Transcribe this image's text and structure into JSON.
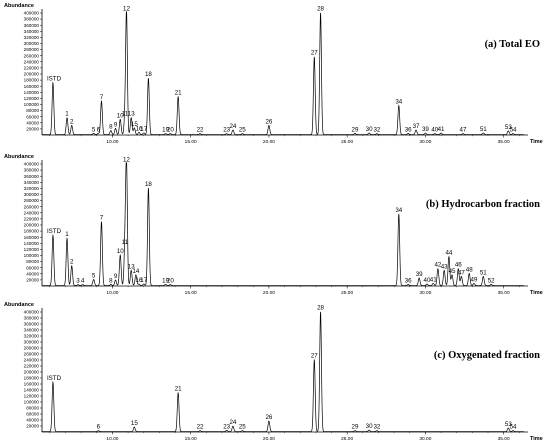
{
  "chart_data": [
    {
      "type": "line",
      "title": "(a) Total EO",
      "ylabel": "Abundance",
      "xlabel": "Time",
      "xlim": [
        5.5,
        36.3
      ],
      "ylim": [
        0,
        400000
      ],
      "y_ticks": [
        "20000",
        "40000",
        "60000",
        "80000",
        "100000",
        "120000",
        "140000",
        "160000",
        "180000",
        "200000",
        "220000",
        "240000",
        "260000",
        "280000",
        "300000",
        "320000",
        "340000",
        "360000",
        "380000",
        "400000"
      ],
      "x_ticks": [
        "10.00",
        "15.00",
        "20.00",
        "25.00",
        "30.00",
        "35.00"
      ],
      "peaks": [
        {
          "label": "ISTD",
          "x": 6.2,
          "y": 170000
        },
        {
          "label": "1",
          "x": 7.1,
          "y": 55000
        },
        {
          "label": "2",
          "x": 7.4,
          "y": 30000
        },
        {
          "label": "5",
          "x": 8.8,
          "y": 4000
        },
        {
          "label": "6",
          "x": 9.1,
          "y": 4000
        },
        {
          "label": "7",
          "x": 9.3,
          "y": 110000
        },
        {
          "label": "8",
          "x": 9.9,
          "y": 13000
        },
        {
          "label": "9",
          "x": 10.2,
          "y": 20000
        },
        {
          "label": "10",
          "x": 10.5,
          "y": 50000
        },
        {
          "label": "11",
          "x": 10.8,
          "y": 55000
        },
        {
          "label": "12",
          "x": 10.9,
          "y": 400000
        },
        {
          "label": "13",
          "x": 11.2,
          "y": 55000
        },
        {
          "label": "15",
          "x": 11.4,
          "y": 22000
        },
        {
          "label": "16",
          "x": 11.7,
          "y": 7000
        },
        {
          "label": "17",
          "x": 12.0,
          "y": 5000
        },
        {
          "label": "18",
          "x": 12.3,
          "y": 185000
        },
        {
          "label": "19",
          "x": 13.4,
          "y": 3000
        },
        {
          "label": "20",
          "x": 13.7,
          "y": 3000
        },
        {
          "label": "21",
          "x": 14.2,
          "y": 125000
        },
        {
          "label": "22",
          "x": 15.6,
          "y": 3000
        },
        {
          "label": "23",
          "x": 17.3,
          "y": 3000
        },
        {
          "label": "24",
          "x": 17.7,
          "y": 15000
        },
        {
          "label": "25",
          "x": 18.3,
          "y": 3000
        },
        {
          "label": "26",
          "x": 20.0,
          "y": 30000
        },
        {
          "label": "27",
          "x": 22.9,
          "y": 255000
        },
        {
          "label": "28",
          "x": 23.3,
          "y": 400000
        },
        {
          "label": "29",
          "x": 25.5,
          "y": 4000
        },
        {
          "label": "30",
          "x": 26.4,
          "y": 5000
        },
        {
          "label": "32",
          "x": 26.9,
          "y": 3000
        },
        {
          "label": "34",
          "x": 28.3,
          "y": 95000
        },
        {
          "label": "36",
          "x": 28.9,
          "y": 4000
        },
        {
          "label": "37",
          "x": 29.4,
          "y": 15000
        },
        {
          "label": "39",
          "x": 30.0,
          "y": 5000
        },
        {
          "label": "40",
          "x": 30.6,
          "y": 3000
        },
        {
          "label": "41",
          "x": 31.0,
          "y": 5000
        },
        {
          "label": "47",
          "x": 32.4,
          "y": 3000
        },
        {
          "label": "51",
          "x": 33.7,
          "y": 5000
        },
        {
          "label": "53",
          "x": 35.3,
          "y": 12000
        },
        {
          "label": "54",
          "x": 35.6,
          "y": 3000
        }
      ]
    },
    {
      "type": "line",
      "title": "(b) Hydrocarbon fraction",
      "ylabel": "Abundance",
      "xlabel": "Time",
      "xlim": [
        5.5,
        36.3
      ],
      "ylim": [
        0,
        400000
      ],
      "y_ticks": [
        "20000",
        "40000",
        "60000",
        "80000",
        "100000",
        "120000",
        "140000",
        "160000",
        "180000",
        "200000",
        "220000",
        "240000",
        "260000",
        "280000",
        "300000",
        "320000",
        "340000",
        "360000",
        "380000",
        "400000"
      ],
      "x_ticks": [
        "10.00",
        "15.00",
        "20.00",
        "25.00",
        "30.00",
        "35.00"
      ],
      "peaks": [
        {
          "label": "ISTD",
          "x": 6.2,
          "y": 165000
        },
        {
          "label": "1",
          "x": 7.1,
          "y": 155000
        },
        {
          "label": "2",
          "x": 7.4,
          "y": 65000
        },
        {
          "label": "3",
          "x": 7.8,
          "y": 3000
        },
        {
          "label": "4",
          "x": 8.1,
          "y": 3000
        },
        {
          "label": "5",
          "x": 8.8,
          "y": 20000
        },
        {
          "label": "7",
          "x": 9.3,
          "y": 210000
        },
        {
          "label": "8",
          "x": 9.9,
          "y": 4000
        },
        {
          "label": "9",
          "x": 10.2,
          "y": 18000
        },
        {
          "label": "10",
          "x": 10.5,
          "y": 100000
        },
        {
          "label": "11",
          "x": 10.8,
          "y": 130000
        },
        {
          "label": "12",
          "x": 10.9,
          "y": 400000
        },
        {
          "label": "13",
          "x": 11.2,
          "y": 50000
        },
        {
          "label": "14",
          "x": 11.5,
          "y": 35000
        },
        {
          "label": "16",
          "x": 11.7,
          "y": 5000
        },
        {
          "label": "17",
          "x": 12.0,
          "y": 5000
        },
        {
          "label": "18",
          "x": 12.3,
          "y": 320000
        },
        {
          "label": "19",
          "x": 13.4,
          "y": 4000
        },
        {
          "label": "20",
          "x": 13.7,
          "y": 3000
        },
        {
          "label": "34",
          "x": 28.3,
          "y": 235000
        },
        {
          "label": "36",
          "x": 28.9,
          "y": 4000
        },
        {
          "label": "39",
          "x": 29.6,
          "y": 25000
        },
        {
          "label": "40",
          "x": 30.1,
          "y": 5000
        },
        {
          "label": "41",
          "x": 30.5,
          "y": 7000
        },
        {
          "label": "42",
          "x": 30.8,
          "y": 55000
        },
        {
          "label": "43",
          "x": 31.2,
          "y": 50000
        },
        {
          "label": "44",
          "x": 31.5,
          "y": 95000
        },
        {
          "label": "45",
          "x": 31.7,
          "y": 35000
        },
        {
          "label": "46",
          "x": 32.1,
          "y": 55000
        },
        {
          "label": "47",
          "x": 32.3,
          "y": 30000
        },
        {
          "label": "48",
          "x": 32.8,
          "y": 40000
        },
        {
          "label": "49",
          "x": 33.1,
          "y": 7000
        },
        {
          "label": "51",
          "x": 33.7,
          "y": 30000
        },
        {
          "label": "52",
          "x": 34.2,
          "y": 4000
        }
      ]
    },
    {
      "type": "line",
      "title": "(c) Oxygenated fraction",
      "ylabel": "Abundance",
      "xlabel": "Time",
      "xlim": [
        5.5,
        36.3
      ],
      "ylim": [
        0,
        400000
      ],
      "y_ticks": [
        "20000",
        "40000",
        "60000",
        "80000",
        "100000",
        "120000",
        "140000",
        "160000",
        "180000",
        "200000",
        "220000",
        "240000",
        "260000",
        "280000",
        "300000",
        "320000",
        "340000",
        "360000",
        "380000",
        "400000"
      ],
      "x_ticks": [
        "10.00",
        "15.00",
        "20.00",
        "25.00",
        "30.00",
        "35.00"
      ],
      "peaks": [
        {
          "label": "ISTD",
          "x": 6.2,
          "y": 165000
        },
        {
          "label": "6",
          "x": 9.1,
          "y": 3000
        },
        {
          "label": "15",
          "x": 11.4,
          "y": 15000
        },
        {
          "label": "21",
          "x": 14.2,
          "y": 130000
        },
        {
          "label": "22",
          "x": 15.6,
          "y": 3000
        },
        {
          "label": "23",
          "x": 17.3,
          "y": 4000
        },
        {
          "label": "24",
          "x": 17.7,
          "y": 18000
        },
        {
          "label": "25",
          "x": 18.3,
          "y": 3000
        },
        {
          "label": "26",
          "x": 20.0,
          "y": 35000
        },
        {
          "label": "27",
          "x": 22.9,
          "y": 240000
        },
        {
          "label": "28",
          "x": 23.3,
          "y": 400000
        },
        {
          "label": "29",
          "x": 25.5,
          "y": 3000
        },
        {
          "label": "30",
          "x": 26.4,
          "y": 5000
        },
        {
          "label": "32",
          "x": 26.9,
          "y": 3000
        },
        {
          "label": "53",
          "x": 35.3,
          "y": 12000
        },
        {
          "label": "54",
          "x": 35.6,
          "y": 3000
        }
      ]
    }
  ]
}
